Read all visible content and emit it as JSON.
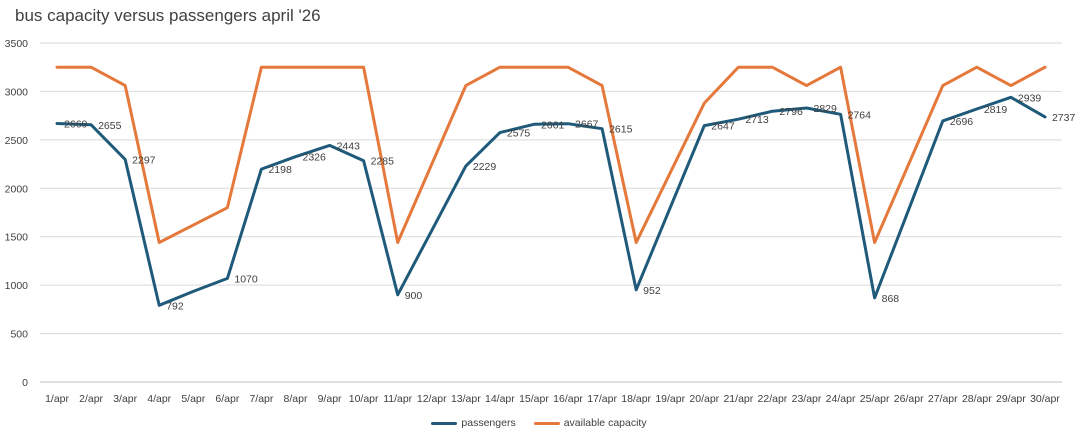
{
  "chart_data": {
    "type": "line",
    "title": "bus capacity versus passengers april '26",
    "xlabel": "",
    "ylabel": "",
    "categories": [
      "1/apr",
      "2/apr",
      "3/apr",
      "4/apr",
      "5/apr",
      "6/apr",
      "7/apr",
      "8/apr",
      "9/apr",
      "10/apr",
      "11/apr",
      "12/apr",
      "13/apr",
      "14/apr",
      "15/apr",
      "16/apr",
      "17/apr",
      "18/apr",
      "19/apr",
      "20/apr",
      "21/apr",
      "22/apr",
      "23/apr",
      "24/apr",
      "25/apr",
      "26/apr",
      "27/apr",
      "28/apr",
      "29/apr",
      "30/apr"
    ],
    "ylim": [
      0,
      3500
    ],
    "yticks": [
      0,
      500,
      1000,
      1500,
      2000,
      2500,
      3000,
      3500
    ],
    "grid": true,
    "legend_position": "bottom",
    "series": [
      {
        "name": "passengers",
        "color": "#1f5a7a",
        "data_labels": true,
        "values": [
          2669,
          2655,
          2297,
          792,
          935,
          1070,
          2198,
          2326,
          2443,
          2285,
          900,
          1565,
          2229,
          2575,
          2661,
          2667,
          2615,
          952,
          1800,
          2647,
          2713,
          2796,
          2829,
          2764,
          868,
          1780,
          2696,
          2819,
          2939,
          2737
        ]
      },
      {
        "name": "available capacity",
        "color": "#e5783b",
        "data_labels": false,
        "values": [
          3250,
          3250,
          3060,
          1440,
          1620,
          1800,
          3250,
          3250,
          3250,
          3250,
          1440,
          2250,
          3060,
          3250,
          3250,
          3250,
          3060,
          1440,
          2160,
          2880,
          3250,
          3250,
          3060,
          3250,
          1440,
          2250,
          3060,
          3250,
          3060,
          3250
        ]
      }
    ],
    "passenger_data_labels": [
      {
        "index": 0,
        "text": "2669"
      },
      {
        "index": 1,
        "text": "2655"
      },
      {
        "index": 2,
        "text": "2297"
      },
      {
        "index": 3,
        "text": "792"
      },
      {
        "index": 5,
        "text": "1070"
      },
      {
        "index": 6,
        "text": "2198"
      },
      {
        "index": 7,
        "text": "2326"
      },
      {
        "index": 8,
        "text": "2443"
      },
      {
        "index": 9,
        "text": "2285"
      },
      {
        "index": 10,
        "text": "900"
      },
      {
        "index": 12,
        "text": "2229"
      },
      {
        "index": 13,
        "text": "2575"
      },
      {
        "index": 14,
        "text": "2661"
      },
      {
        "index": 15,
        "text": "2667"
      },
      {
        "index": 16,
        "text": "2615"
      },
      {
        "index": 17,
        "text": "952"
      },
      {
        "index": 19,
        "text": "2647"
      },
      {
        "index": 20,
        "text": "2713"
      },
      {
        "index": 21,
        "text": "2796"
      },
      {
        "index": 22,
        "text": "2829"
      },
      {
        "index": 23,
        "text": "2764"
      },
      {
        "index": 24,
        "text": "868"
      },
      {
        "index": 26,
        "text": "2696"
      },
      {
        "index": 27,
        "text": "2819"
      },
      {
        "index": 28,
        "text": "2939"
      },
      {
        "index": 29,
        "text": "2737"
      }
    ]
  }
}
